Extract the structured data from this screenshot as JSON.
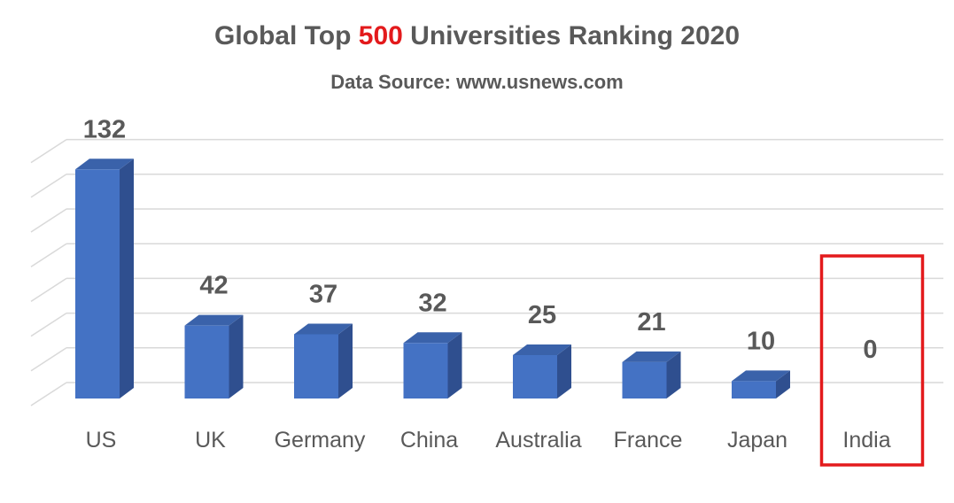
{
  "title": {
    "prefix": "Global Top ",
    "highlight": "500",
    "suffix": " Universities Ranking 2020"
  },
  "subtitle": "Data Source: www.usnews.com",
  "colors": {
    "bar_front": "#4472c4",
    "bar_side": "#2f4f8f",
    "bar_top": "#3a62aa",
    "highlight": "#e31a1c",
    "grid": "#d9d9d9",
    "text": "#595959"
  },
  "chart_data": {
    "type": "bar",
    "style": "3d-column",
    "categories": [
      "US",
      "UK",
      "Germany",
      "China",
      "Australia",
      "France",
      "Japan",
      "India"
    ],
    "values": [
      132,
      42,
      37,
      32,
      25,
      21,
      10,
      0
    ],
    "ylim": [
      0,
      140
    ],
    "grid": true,
    "highlighted_category": "India",
    "highlight_style": "red outline box with black value label"
  }
}
